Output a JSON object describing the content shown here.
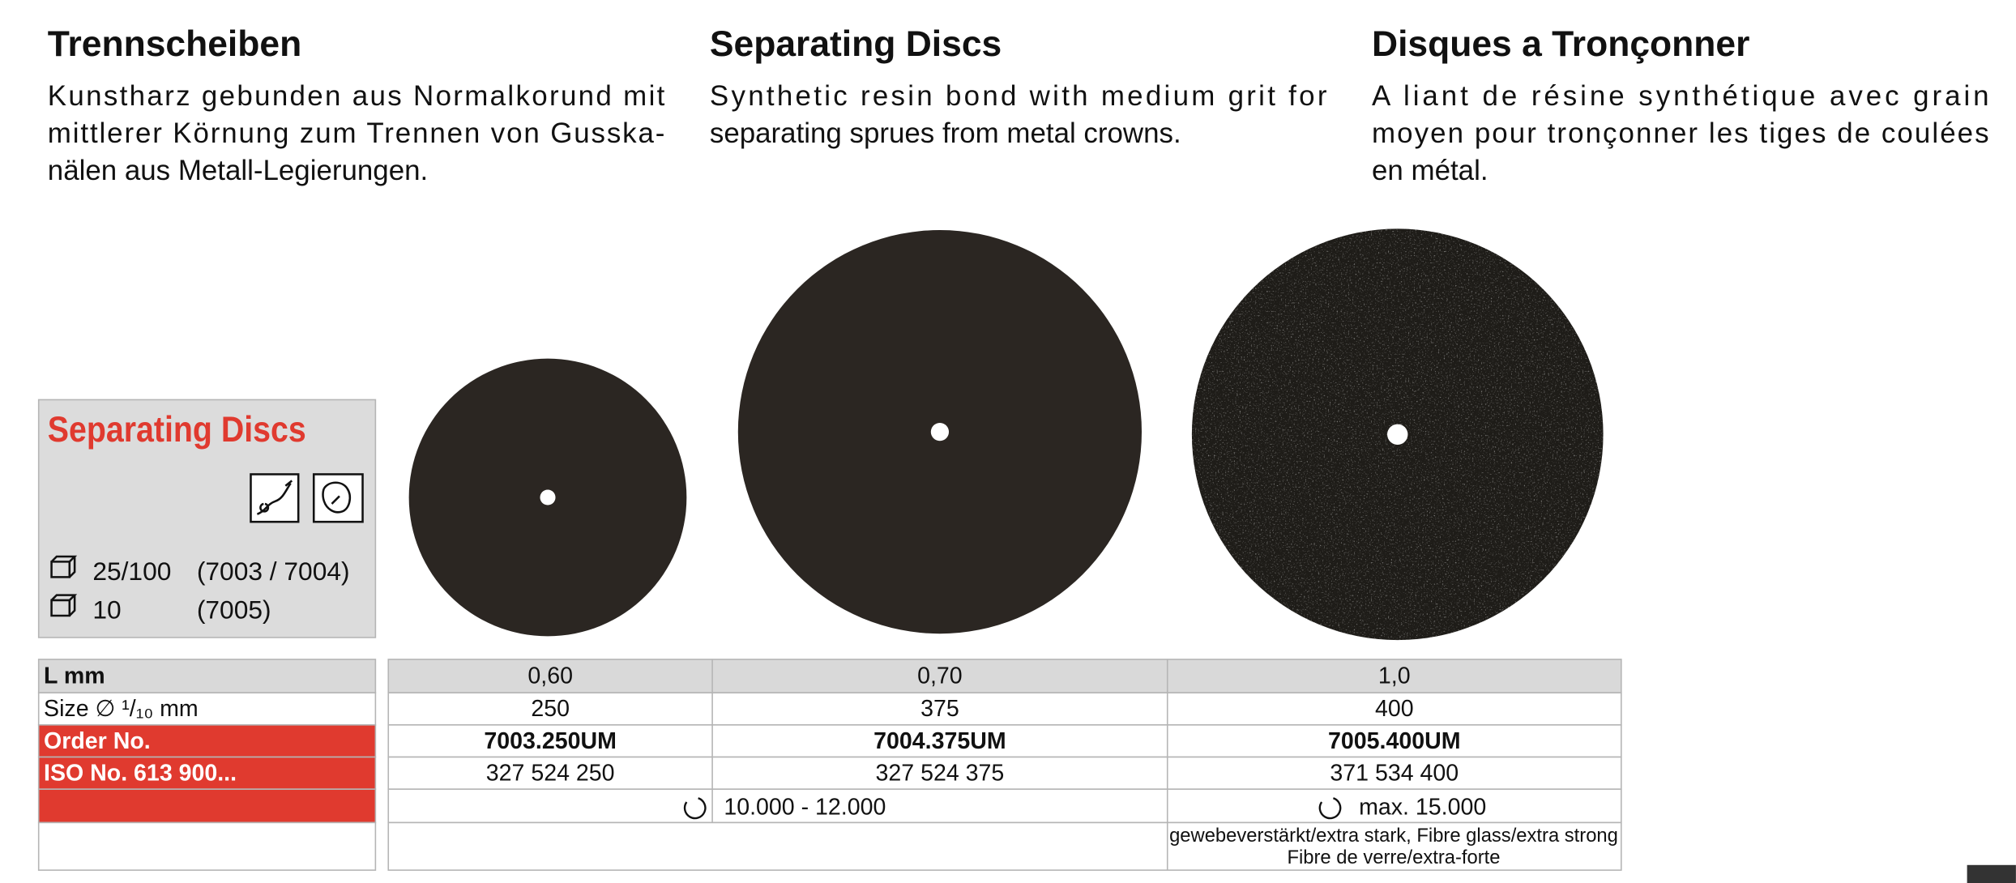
{
  "columns": [
    {
      "title": "Trennscheiben",
      "lines": [
        "Kunstharz gebunden aus Normalkorund mit",
        "mittlerer Körnung zum Trennen von Gusska-",
        "nälen aus Metall-Legierungen."
      ]
    },
    {
      "title": "Separating Discs",
      "lines": [
        "Synthetic resin bond with medium grit for",
        "separating sprues from metal crowns."
      ]
    },
    {
      "title": "Disques a Tronçonner",
      "lines": [
        "A liant de résine synthétique avec grain",
        "moyen pour tronçonner les tiges de coulées",
        "en métal."
      ]
    }
  ],
  "product_box": {
    "title": "Separating Discs",
    "packaging": [
      {
        "qty": "25/100",
        "models": "(7003 / 7004)"
      },
      {
        "qty": "10",
        "models": "(7005)"
      }
    ]
  },
  "table": {
    "rows": [
      {
        "label": "L mm",
        "cells": [
          "0,60",
          "0,70",
          "1,0"
        ]
      },
      {
        "label": "Size ∅ ¹/₁₀ mm",
        "cells": [
          "250",
          "375",
          "400"
        ]
      },
      {
        "label": "Order No.",
        "cells": [
          "7003.250UM",
          "7004.375UM",
          "7005.400UM"
        ]
      },
      {
        "label": "ISO No. 613 900...",
        "cells": [
          "327 524 250",
          "327 524 375",
          "371 534 400"
        ]
      }
    ],
    "speed": [
      "10.000 - 12.000",
      "max. 15.000"
    ],
    "note": [
      "gewebeverstärkt/extra stark, Fibre glass/extra strong",
      "Fibre de verre/extra-forte"
    ]
  }
}
